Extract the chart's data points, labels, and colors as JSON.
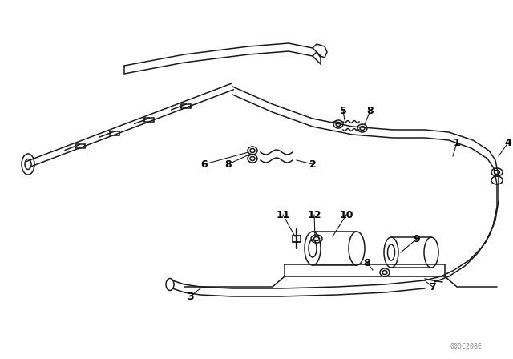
{
  "bg_color": "#ffffff",
  "line_color": "#1a1a1a",
  "lw": 1.1,
  "watermark": "00DC208E"
}
